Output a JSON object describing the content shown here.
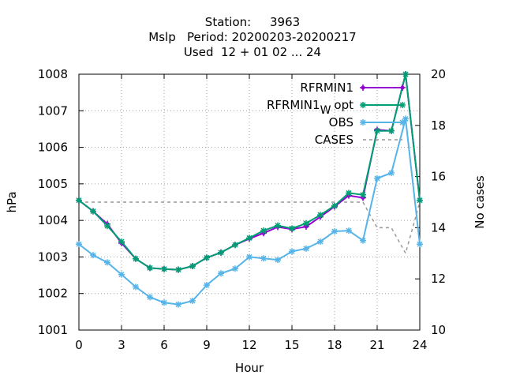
{
  "chart_data": {
    "type": "line",
    "title_lines": [
      "Station:     3963",
      "Mslp   Period: 20200203-20200217",
      "Used  12 + 01 02 ... 24"
    ],
    "xlabel": "Hour",
    "ylabel": "hPa",
    "y2label": "No cases",
    "xlim": [
      0,
      24
    ],
    "ylim": [
      1001,
      1008
    ],
    "y2lim": [
      10,
      20
    ],
    "xticks": [
      "0",
      "3",
      "6",
      "9",
      "12",
      "15",
      "18",
      "21",
      "24"
    ],
    "yticks": [
      "1001",
      "1002",
      "1003",
      "1004",
      "1005",
      "1006",
      "1007",
      "1008"
    ],
    "y2ticks": [
      "10",
      "12",
      "14",
      "16",
      "18",
      "20"
    ],
    "grid": true,
    "legend_position": "top-right",
    "x": [
      0,
      1,
      2,
      3,
      4,
      5,
      6,
      7,
      8,
      9,
      10,
      11,
      12,
      13,
      14,
      15,
      16,
      17,
      18,
      19,
      20,
      21,
      22,
      23,
      24
    ],
    "series": [
      {
        "name": "RFRMIN1",
        "color": "#9400d3",
        "marker": "plus",
        "axis": "y",
        "values": [
          1004.55,
          1004.25,
          1003.9,
          1003.38,
          1002.95,
          1002.7,
          1002.67,
          1002.65,
          1002.75,
          1002.98,
          1003.12,
          1003.33,
          1003.5,
          1003.65,
          1003.82,
          1003.76,
          1003.83,
          1004.1,
          1004.38,
          1004.68,
          1004.62,
          1006.48,
          1006.45,
          1008.0,
          1004.55
        ]
      },
      {
        "name": "RFRMIN1",
        "name_subscript": "W",
        "name_suffix": "opt",
        "color": "#009e73",
        "marker": "star",
        "axis": "y",
        "values": [
          1004.55,
          1004.25,
          1003.85,
          1003.42,
          1002.95,
          1002.7,
          1002.67,
          1002.65,
          1002.75,
          1002.98,
          1003.12,
          1003.33,
          1003.52,
          1003.72,
          1003.86,
          1003.78,
          1003.92,
          1004.15,
          1004.4,
          1004.75,
          1004.7,
          1006.45,
          1006.45,
          1008.0,
          1004.55
        ]
      },
      {
        "name": "OBS",
        "color": "#56b4e9",
        "marker": "star",
        "axis": "y",
        "values": [
          1003.35,
          1003.05,
          1002.85,
          1002.52,
          1002.18,
          1001.9,
          1001.75,
          1001.7,
          1001.8,
          1002.23,
          1002.55,
          1002.68,
          1003.0,
          1002.96,
          1002.92,
          1003.15,
          1003.23,
          1003.42,
          1003.7,
          1003.72,
          1003.45,
          1005.15,
          1005.3,
          1006.78,
          1003.35
        ]
      },
      {
        "name": "CASES",
        "color": "#999999",
        "dashed": true,
        "axis": "y2",
        "values": [
          15,
          15,
          15,
          15,
          15,
          15,
          15,
          15,
          15,
          15,
          15,
          15,
          15,
          15,
          15,
          15,
          15,
          15,
          15,
          15,
          15,
          14,
          14,
          13,
          15
        ]
      }
    ]
  }
}
